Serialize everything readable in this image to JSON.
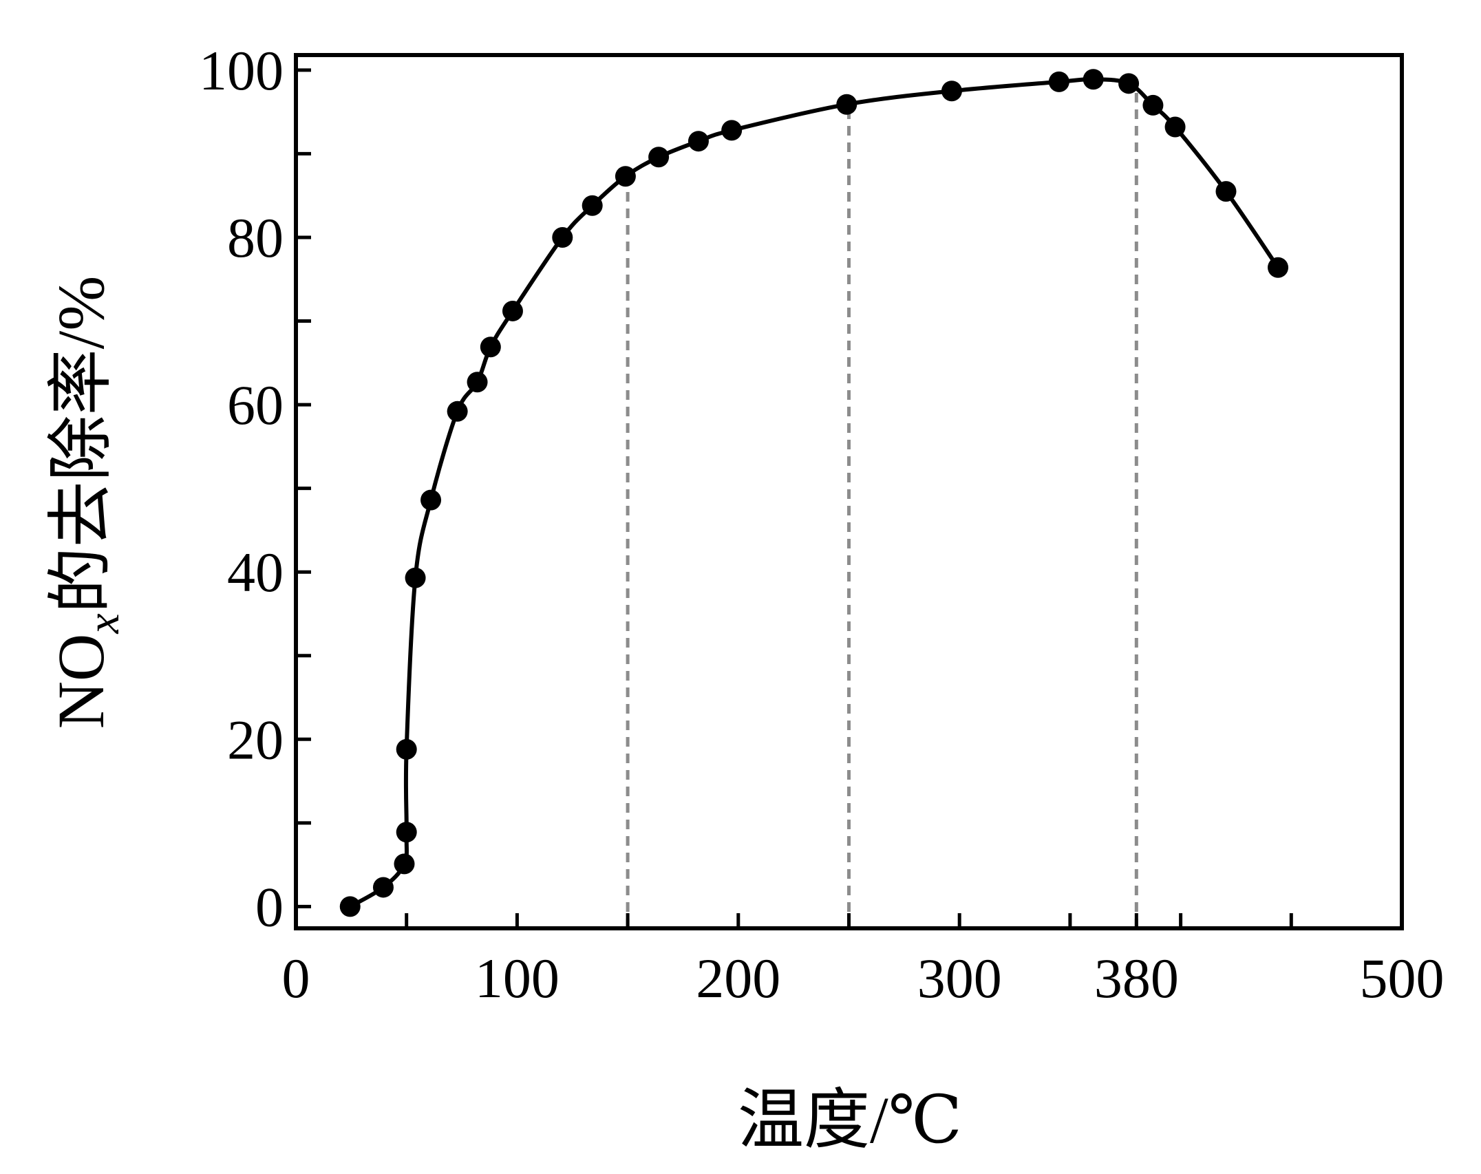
{
  "chart_data": {
    "type": "line",
    "xlabel": "温度/℃",
    "ylabel": [
      "NO",
      "x",
      "的去除率/%"
    ],
    "series": [
      {
        "color": "#000000",
        "x": [
          24.5,
          39.5,
          49,
          50,
          50,
          54,
          61,
          73,
          82,
          88,
          98,
          120.5,
          134,
          149,
          164,
          182,
          197,
          249,
          296.5,
          345,
          360.5,
          376.5,
          387.5,
          397.5,
          420.5,
          444
        ],
        "values": [
          0,
          2.3,
          5.1,
          8.9,
          18.8,
          39.3,
          48.6,
          59.2,
          62.7,
          66.9,
          71.2,
          80,
          83.8,
          87.3,
          89.6,
          91.5,
          92.8,
          95.9,
          97.5,
          98.6,
          98.9,
          98.4,
          95.8,
          93.2,
          85.5,
          76.4
        ]
      }
    ],
    "reference_lines": [
      {
        "x": 150,
        "y": 87.3,
        "color": "#8c8c8c"
      },
      {
        "x": 250,
        "y": 95.9,
        "color": "#8c8c8c"
      },
      {
        "x": 380,
        "y": 98.4,
        "color": "#8c8c8c"
      }
    ],
    "xlim": [
      0,
      500
    ],
    "xticks": [
      0,
      100,
      200,
      300,
      380,
      500
    ],
    "xminor": [
      50,
      150,
      250,
      350,
      400,
      450
    ],
    "ylim": [
      -2.6,
      101.8
    ],
    "yticks": [
      0,
      20,
      40,
      60,
      80,
      100
    ],
    "yminor": [
      10,
      30,
      50,
      70,
      90
    ],
    "grid": false
  }
}
